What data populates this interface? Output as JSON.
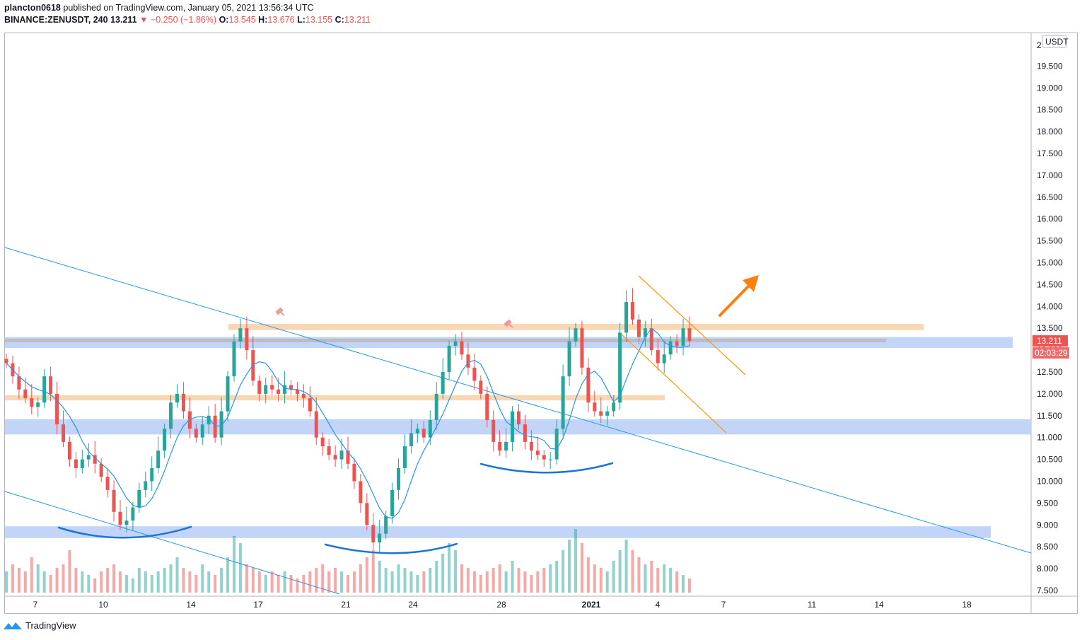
{
  "header": {
    "author": "plancton0618",
    "published_text": "published on TradingView.com, January 05, 2021 13:56:34 UTC",
    "symbol": "BINANCE:ZENUSDT",
    "interval": "240",
    "last": "13.211",
    "change_arrow": "▼",
    "change": "−0.250 (−1.86%)",
    "o_label": "O:",
    "o": "13.545",
    "h_label": "H:",
    "h": "13.676",
    "l_label": "L:",
    "l": "13.155",
    "c_label": "C:",
    "c": "13.211"
  },
  "currency_badge": "USDT",
  "price_axis_labels": [
    "2",
    "19.500",
    "19.000",
    "18.500",
    "18.000",
    "17.500",
    "17.000",
    "16.500",
    "16.000",
    "15.500",
    "15.000",
    "14.500",
    "14.000",
    "13.500",
    "13.000",
    "12.500",
    "12.000",
    "11.500",
    "11.000",
    "10.500",
    "10.000",
    "9.500",
    "9.000",
    "8.500",
    "8.000",
    "7.500"
  ],
  "time_axis_labels": [
    "7",
    "10",
    "14",
    "17",
    "21",
    "24",
    "28",
    "2021",
    "4",
    "7",
    "11",
    "14",
    "18"
  ],
  "last_price_tag": "13.211",
  "countdown_tag": "02:03:29",
  "footer": {
    "brand": "TradingView"
  },
  "colors": {
    "up": "#26a69a",
    "down": "#ef5350",
    "ma": "#2196f3",
    "zone_blue": "#bbd0f7",
    "zone_orange": "#f8d3ad",
    "zone_grey": "#b8b8b8",
    "trend": "#2196f3",
    "channel": "#ff9800",
    "arrow": "#ff7f0e"
  },
  "chart_data": {
    "type": "candlestick",
    "symbol": "BINANCE:ZENUSDT",
    "interval": "240",
    "ylim": [
      7.35,
      20.0
    ],
    "yticks": [
      7.5,
      8.0,
      8.5,
      9.0,
      9.5,
      10.0,
      10.5,
      11.0,
      11.5,
      12.0,
      12.5,
      13.0,
      13.5,
      14.0,
      14.5,
      15.0,
      15.5,
      16.0,
      16.5,
      17.0,
      17.5,
      18.0,
      18.5,
      19.0,
      19.5
    ],
    "xlabels": [
      "7",
      "10",
      "14",
      "17",
      "21",
      "24",
      "28",
      "2021",
      "4",
      "7",
      "11",
      "14",
      "18"
    ],
    "close_path": [
      12.7,
      12.4,
      12.1,
      11.9,
      11.7,
      11.8,
      12.4,
      12.0,
      11.3,
      10.9,
      10.5,
      10.3,
      10.5,
      10.6,
      10.4,
      10.1,
      9.8,
      9.3,
      9.0,
      9.1,
      9.4,
      9.8,
      10.0,
      10.3,
      10.7,
      11.2,
      11.8,
      12.0,
      11.6,
      11.2,
      11.0,
      11.3,
      11.5,
      11.0,
      11.6,
      12.4,
      13.2,
      13.5,
      13.0,
      12.3,
      12.0,
      12.2,
      12.1,
      12.0,
      12.2,
      12.1,
      12.0,
      11.9,
      11.6,
      11.0,
      10.8,
      10.6,
      10.5,
      10.7,
      10.4,
      10.0,
      9.5,
      9.0,
      8.6,
      8.8,
      9.2,
      9.8,
      10.3,
      10.8,
      11.1,
      11.2,
      11.0,
      11.4,
      12.0,
      12.5,
      13.1,
      13.2,
      12.9,
      12.6,
      12.3,
      12.0,
      11.4,
      10.9,
      10.7,
      10.9,
      11.6,
      11.3,
      10.9,
      10.7,
      10.6,
      10.5,
      10.5,
      11.2,
      12.4,
      13.2,
      13.5,
      12.6,
      11.8,
      11.6,
      11.5,
      11.6,
      11.8,
      13.4,
      14.1,
      13.7,
      13.3,
      13.5,
      13.0,
      12.7,
      12.9,
      13.2,
      13.1,
      13.5,
      13.211
    ],
    "volume_level": [
      0.3,
      0.4,
      0.35,
      0.3,
      0.5,
      0.4,
      0.3,
      0.25,
      0.35,
      0.4,
      0.6,
      0.35,
      0.3,
      0.25,
      0.2,
      0.3,
      0.35,
      0.4,
      0.3,
      0.25,
      0.2,
      0.35,
      0.3,
      0.25,
      0.3,
      0.35,
      0.4,
      0.5,
      0.35,
      0.3,
      0.25,
      0.4,
      0.3,
      0.25,
      0.35,
      0.5,
      0.8,
      0.7,
      0.4,
      0.35,
      0.3,
      0.25,
      0.3,
      0.25,
      0.3,
      0.25,
      0.2,
      0.25,
      0.3,
      0.35,
      0.4,
      0.3,
      0.35,
      0.3,
      0.25,
      0.3,
      0.4,
      0.5,
      0.6,
      0.45,
      0.35,
      0.3,
      0.4,
      0.35,
      0.3,
      0.25,
      0.3,
      0.35,
      0.45,
      0.55,
      0.7,
      0.6,
      0.4,
      0.35,
      0.3,
      0.25,
      0.3,
      0.35,
      0.4,
      0.3,
      0.45,
      0.35,
      0.3,
      0.25,
      0.3,
      0.35,
      0.4,
      0.45,
      0.6,
      0.75,
      0.9,
      0.7,
      0.5,
      0.4,
      0.35,
      0.3,
      0.45,
      0.6,
      0.75,
      0.6,
      0.5,
      0.4,
      0.45,
      0.35,
      0.4,
      0.35,
      0.3,
      0.25,
      0.2
    ],
    "zones": [
      {
        "name": "resistance-orange-top",
        "from": 13.46,
        "to": 13.6
      },
      {
        "name": "grey-band",
        "from": 13.18,
        "to": 13.26
      },
      {
        "name": "blue-band-top",
        "from": 13.05,
        "to": 13.3
      },
      {
        "name": "orange-mid",
        "from": 11.85,
        "to": 11.97
      },
      {
        "name": "blue-band-mid",
        "from": 11.07,
        "to": 11.42
      },
      {
        "name": "blue-band-low",
        "from": 8.7,
        "to": 8.97
      }
    ]
  }
}
